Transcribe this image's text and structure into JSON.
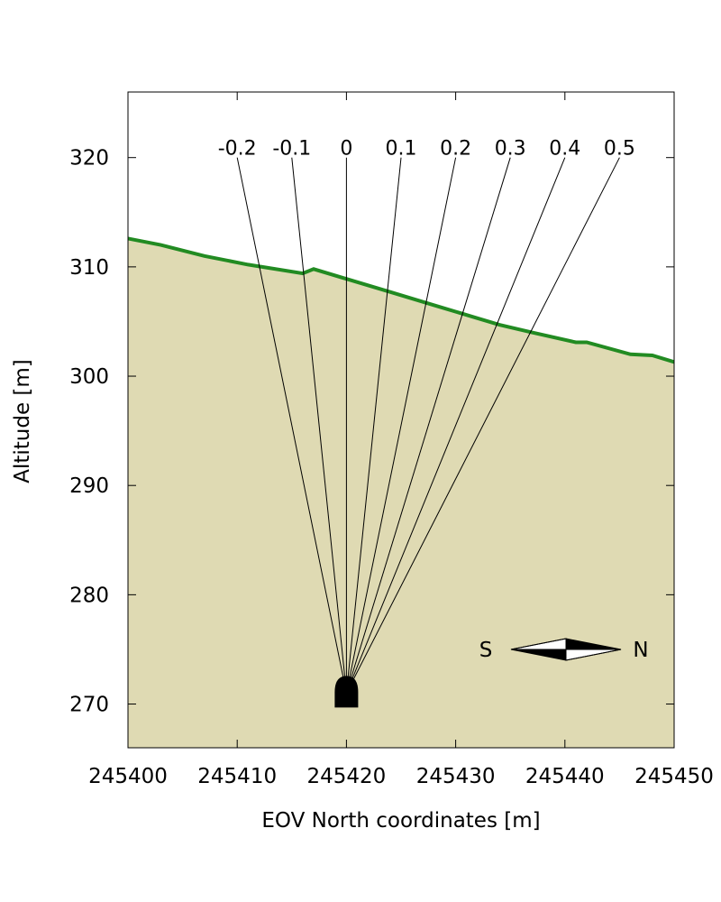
{
  "chart_data": {
    "type": "line",
    "xlabel": "EOV North coordinates [m]",
    "ylabel": "Altitude [m]",
    "xlim": [
      245400,
      245450
    ],
    "ylim": [
      266,
      326
    ],
    "x_ticks": [
      245400,
      245410,
      245420,
      245430,
      245440,
      245450
    ],
    "y_ticks": [
      270,
      280,
      290,
      300,
      310,
      320
    ],
    "grid": false,
    "colors": {
      "ground_fill": "#dfdab3",
      "surface_line": "#228b22",
      "tunnel": "#000000"
    },
    "series": [
      {
        "x": [
          245400,
          245403,
          245407,
          245411,
          245416,
          245417,
          245420,
          245424,
          245428,
          245432,
          245434,
          245437,
          245441,
          245442,
          245446,
          245448,
          245450
        ],
        "y": [
          312.6,
          312.0,
          311.0,
          310.2,
          309.4,
          309.8,
          308.9,
          307.7,
          306.5,
          305.3,
          304.7,
          304.0,
          303.1,
          303.1,
          302.0,
          301.9,
          301.3
        ]
      }
    ],
    "tunnel": {
      "x": 245420,
      "y": 271
    },
    "rays": [
      {
        "label": "-0.2",
        "top": [
          245410,
          320
        ]
      },
      {
        "label": "-0.1",
        "top": [
          245415,
          320
        ]
      },
      {
        "label": "0",
        "top": [
          245420,
          320
        ]
      },
      {
        "label": "0.1",
        "top": [
          245425,
          320
        ]
      },
      {
        "label": "0.2",
        "top": [
          245430,
          320
        ]
      },
      {
        "label": "0.3",
        "top": [
          245435,
          320
        ]
      },
      {
        "label": "0.4",
        "top": [
          245440,
          320
        ]
      },
      {
        "label": "0.5",
        "top": [
          245445,
          320
        ]
      }
    ],
    "compass": {
      "left": "S",
      "right": "N"
    }
  }
}
